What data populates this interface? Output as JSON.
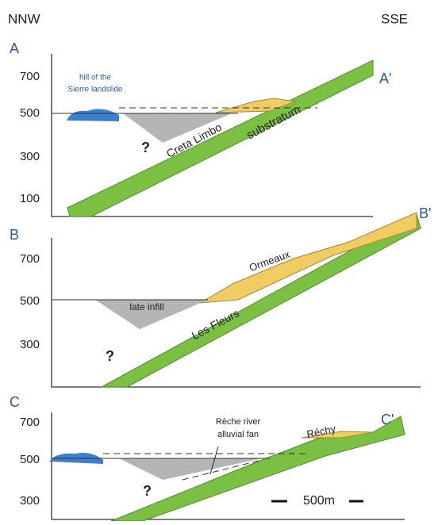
{
  "header": {
    "left": "NNW",
    "right": "SSE"
  },
  "panels": [
    {
      "label": "A",
      "end_label": "A'",
      "ticks": [
        700,
        500,
        300,
        100
      ],
      "labels": {
        "hill_line1": "hill of the",
        "hill_line2": "Sierre landslide",
        "unit1": "Creta Limbo",
        "unit2": "substratum",
        "unknown": "?"
      }
    },
    {
      "label": "B",
      "end_label": "B'",
      "ticks": [
        700,
        500,
        300
      ],
      "labels": {
        "unit1": "Ormeaux",
        "infill": "late infill",
        "unit2": "Les Fleurs",
        "unknown": "?"
      }
    },
    {
      "label": "C",
      "end_label": "C'",
      "ticks": [
        700,
        500,
        300
      ],
      "labels": {
        "fan_line1": "Rèche river",
        "fan_line2": "alluvial fan",
        "unit1": "Réchy",
        "unknown": "?",
        "scale": "500m"
      }
    }
  ]
}
